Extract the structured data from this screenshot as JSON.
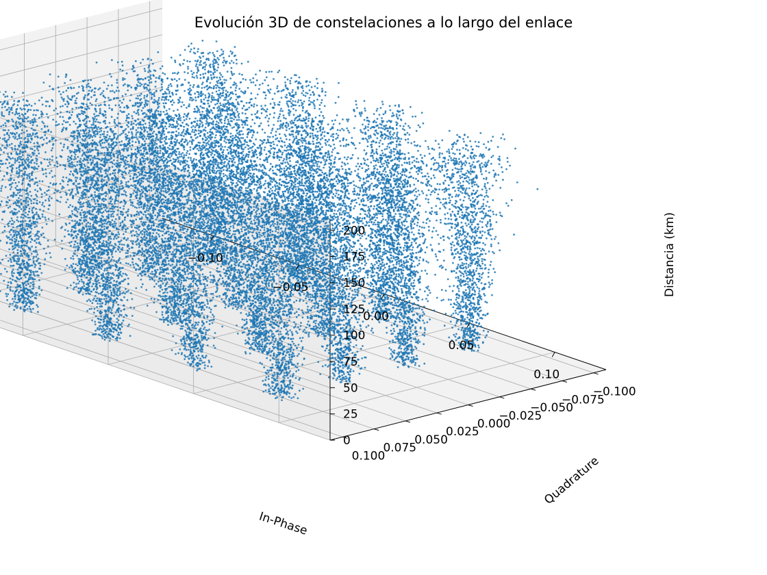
{
  "chart_data": {
    "type": "scatter",
    "projection": "3d",
    "title": "Evolución 3D de constelaciones a lo largo del enlace",
    "xlabel": "In-Phase",
    "ylabel": "Quadrature",
    "zlabel": "Distancia (km)",
    "xlim": [
      -0.13,
      0.13
    ],
    "ylim": [
      -0.11,
      0.11
    ],
    "zlim": [
      0,
      210
    ],
    "xticks": [
      -0.1,
      -0.05,
      0.0,
      0.05,
      0.1
    ],
    "xtick_labels": [
      "−0.10",
      "−0.05",
      "0.00",
      "0.05",
      "0.10"
    ],
    "yticks": [
      -0.1,
      -0.075,
      -0.05,
      -0.025,
      0.0,
      0.025,
      0.05,
      0.075,
      0.1
    ],
    "ytick_labels": [
      "−0.100",
      "−0.075",
      "−0.050",
      "−0.025",
      "0.000",
      "0.025",
      "0.050",
      "0.075",
      "0.100"
    ],
    "zticks": [
      0,
      25,
      50,
      75,
      100,
      125,
      150,
      175,
      200
    ],
    "ztick_labels": [
      "0",
      "25",
      "50",
      "75",
      "100",
      "125",
      "150",
      "175",
      "200"
    ],
    "grid": true,
    "point_color": "#1f77b4",
    "series": [
      {
        "cloud": {
          "x_range": [
            -0.1,
            0.1
          ],
          "y_range": [
            -0.1,
            0.1
          ],
          "z_range": [
            0,
            200
          ],
          "approx_points": 20000,
          "distribution": "dense square constellation cloud at each distance sample"
        }
      }
    ]
  }
}
